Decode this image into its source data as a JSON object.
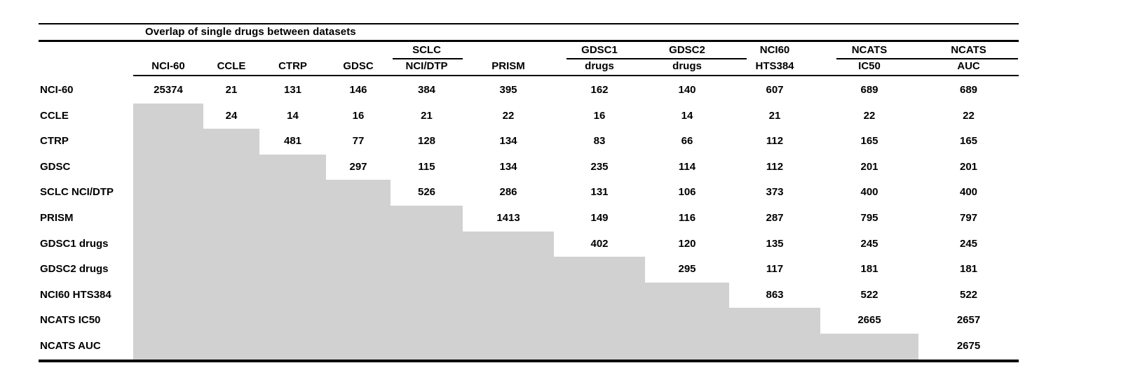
{
  "title": "Overlap of single drugs between datasets",
  "colors": {
    "background": "#ffffff",
    "text": "#000000",
    "rule": "#000000",
    "shaded_cell": "#d1d1d1"
  },
  "columns": [
    {
      "top": "",
      "bottom": "NCI-60"
    },
    {
      "top": "",
      "bottom": "CCLE"
    },
    {
      "top": "",
      "bottom": "CTRP"
    },
    {
      "top": "",
      "bottom": "GDSC"
    },
    {
      "top": "SCLC",
      "bottom": "NCI/DTP"
    },
    {
      "top": "",
      "bottom": "PRISM"
    },
    {
      "top": "GDSC1",
      "bottom": "drugs"
    },
    {
      "top": "GDSC2",
      "bottom": "drugs"
    },
    {
      "top": "NCI60",
      "bottom": "HTS384"
    },
    {
      "top": "NCATS",
      "bottom": "IC50"
    },
    {
      "top": "NCATS",
      "bottom": "AUC"
    }
  ],
  "rows": [
    {
      "label": "NCI-60",
      "values": [
        25374,
        21,
        131,
        146,
        384,
        395,
        162,
        140,
        607,
        689,
        689
      ]
    },
    {
      "label": "CCLE",
      "values": [
        null,
        24,
        14,
        16,
        21,
        22,
        16,
        14,
        21,
        22,
        22
      ]
    },
    {
      "label": "CTRP",
      "values": [
        null,
        null,
        481,
        77,
        128,
        134,
        83,
        66,
        112,
        165,
        165
      ]
    },
    {
      "label": "GDSC",
      "values": [
        null,
        null,
        null,
        297,
        115,
        134,
        235,
        114,
        112,
        201,
        201
      ]
    },
    {
      "label": "SCLC NCI/DTP",
      "values": [
        null,
        null,
        null,
        null,
        526,
        286,
        131,
        106,
        373,
        400,
        400
      ]
    },
    {
      "label": "PRISM",
      "values": [
        null,
        null,
        null,
        null,
        null,
        1413,
        149,
        116,
        287,
        795,
        797
      ]
    },
    {
      "label": "GDSC1 drugs",
      "values": [
        null,
        null,
        null,
        null,
        null,
        null,
        402,
        120,
        135,
        245,
        245
      ]
    },
    {
      "label": "GDSC2 drugs",
      "values": [
        null,
        null,
        null,
        null,
        null,
        null,
        null,
        295,
        117,
        181,
        181
      ]
    },
    {
      "label": "NCI60 HTS384",
      "values": [
        null,
        null,
        null,
        null,
        null,
        null,
        null,
        null,
        863,
        522,
        522
      ]
    },
    {
      "label": "NCATS IC50",
      "values": [
        null,
        null,
        null,
        null,
        null,
        null,
        null,
        null,
        null,
        2665,
        2657
      ]
    },
    {
      "label": "NCATS AUC",
      "values": [
        null,
        null,
        null,
        null,
        null,
        null,
        null,
        null,
        null,
        null,
        2675
      ]
    }
  ]
}
